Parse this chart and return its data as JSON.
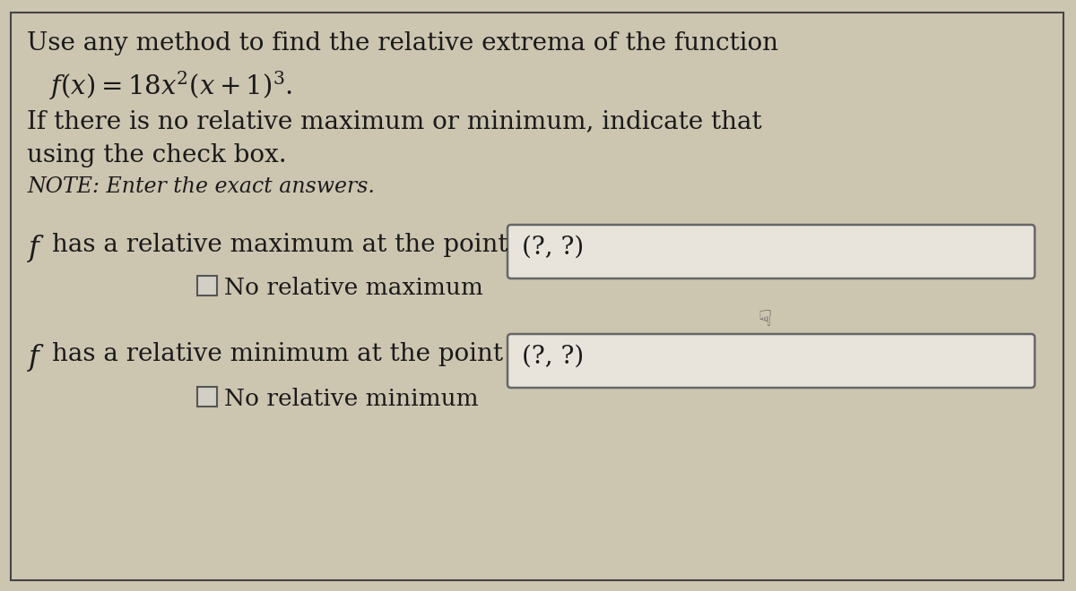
{
  "bg_color": "#ccc5b0",
  "panel_color": "#ccc5b0",
  "text_color": "#1a1a1a",
  "border_color": "#444444",
  "box_bg": "#e8e4dc",
  "box_border": "#666666",
  "cb_bg": "#d4cfc4",
  "line1": "Use any method to find the relative extrema of the function",
  "line2_math": "$f(x) = 18x^2(x+1)^3.$",
  "line3": "If there is no relative maximum or minimum, indicate that",
  "line4": "using the check box.",
  "line5_italic": "NOTE: Enter the exact answers.",
  "max_text": "has a relative maximum at the point",
  "max_box_text": "(?, ?)",
  "max_check_text": "No relative maximum",
  "min_text": "has a relative minimum at the point",
  "min_box_text": "(?, ?)",
  "min_check_text": "No relative minimum",
  "font_size_main": 20,
  "font_size_note": 17,
  "font_size_math": 21,
  "font_size_check": 19,
  "font_size_box_text": 20
}
